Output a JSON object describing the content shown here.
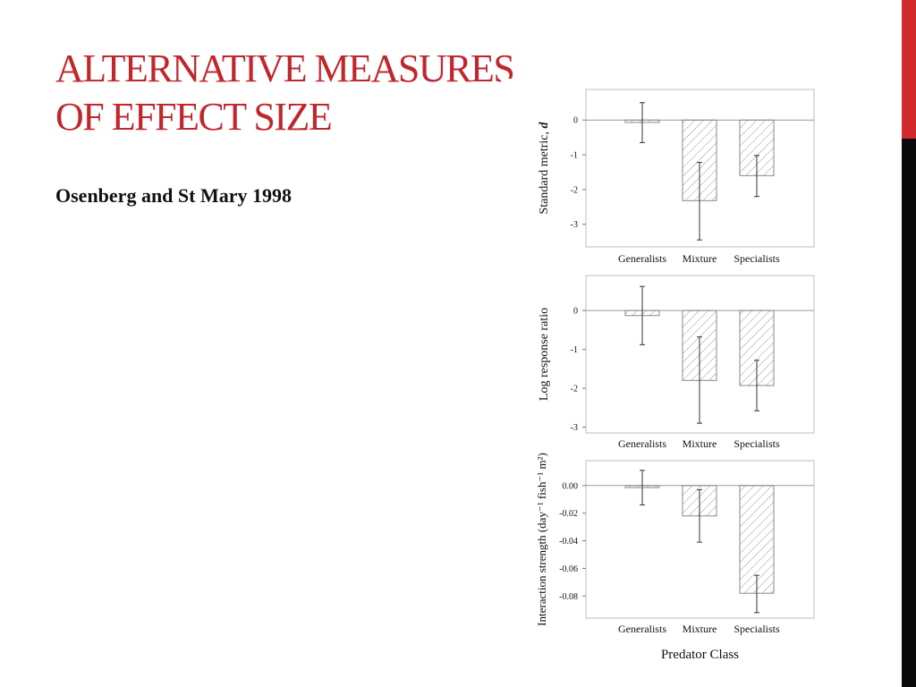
{
  "slide": {
    "title_line1": "ALTERNATIVE MEASURES",
    "title_line2": "OF EFFECT SIZE",
    "subtitle": "Osenberg and St Mary 1998",
    "colors": {
      "title": "#c0272d",
      "accent_bar_top": "#d12b2e",
      "accent_bar_bottom": "#0a0a0a"
    }
  },
  "chart_data": [
    {
      "type": "bar",
      "ylabel": "Standard metric, d",
      "xlabel": "",
      "categories": [
        "Generalists",
        "Mixture",
        "Specialists"
      ],
      "values": [
        -0.07,
        -2.32,
        -1.6
      ],
      "error_low": [
        -0.65,
        -3.45,
        -2.2
      ],
      "error_high": [
        0.5,
        -1.22,
        -1.02
      ],
      "yticks": [
        0,
        -1,
        -2,
        -3
      ],
      "ytick_labels": [
        "0",
        "-1",
        "-2",
        "-3"
      ],
      "ylim": [
        -3.65,
        0.88
      ],
      "grid": false,
      "bar_fill": "diagonal-hatch"
    },
    {
      "type": "bar",
      "ylabel": "Log response ratio",
      "xlabel": "",
      "categories": [
        "Generalists",
        "Mixture",
        "Specialists"
      ],
      "values": [
        -0.13,
        -1.8,
        -1.93
      ],
      "error_low": [
        -0.88,
        -2.9,
        -2.58
      ],
      "error_high": [
        0.62,
        -0.68,
        -1.28
      ],
      "yticks": [
        0,
        -1,
        -2,
        -3
      ],
      "ytick_labels": [
        "0",
        "-1",
        "-2",
        "-3"
      ],
      "ylim": [
        -3.15,
        0.9
      ],
      "grid": false,
      "bar_fill": "diagonal-hatch"
    },
    {
      "type": "bar",
      "ylabel": "Interaction strength (day⁻¹ fish⁻¹ m²)",
      "xlabel": "Predator Class",
      "categories": [
        "Generalists",
        "Mixture",
        "Specialists"
      ],
      "values": [
        -0.0015,
        -0.022,
        -0.078
      ],
      "error_low": [
        -0.014,
        -0.041,
        -0.092
      ],
      "error_high": [
        0.011,
        -0.003,
        -0.065
      ],
      "yticks": [
        0.0,
        -0.02,
        -0.04,
        -0.06,
        -0.08
      ],
      "ytick_labels": [
        "0.00",
        "-0.02",
        "-0.04",
        "-0.06",
        "-0.08"
      ],
      "ylim": [
        -0.096,
        0.018
      ],
      "grid": false,
      "bar_fill": "diagonal-hatch"
    }
  ]
}
